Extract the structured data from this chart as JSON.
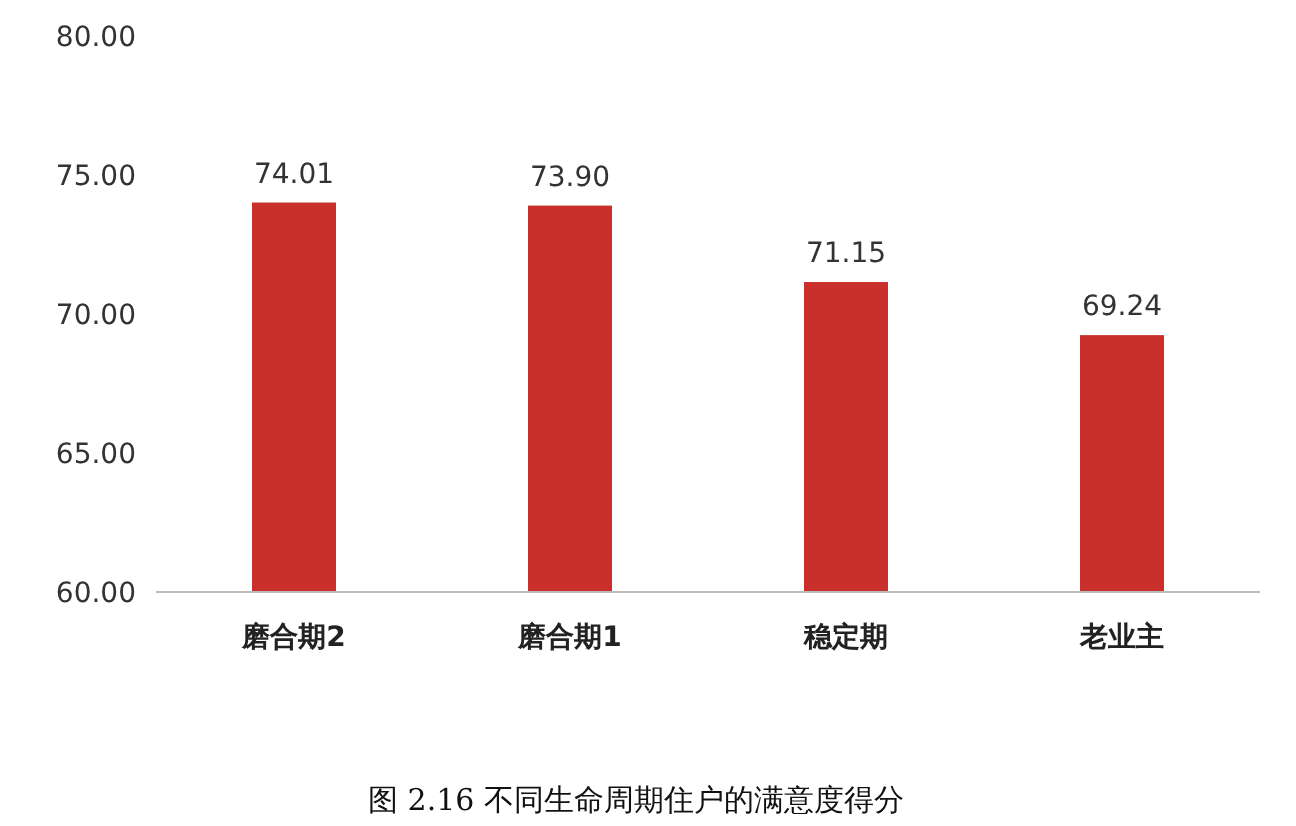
{
  "chart_data": {
    "type": "bar",
    "title": "图 2.16  不同生命周期住户的满意度得分",
    "categories": [
      "磨合期2",
      "磨合期1",
      "稳定期",
      "老业主"
    ],
    "values": [
      74.01,
      73.9,
      71.15,
      69.24
    ],
    "value_labels": [
      "74.01",
      "73.90",
      "71.15",
      "69.24"
    ],
    "color": "#c9302c",
    "ylim": [
      60,
      80
    ],
    "yticks": [
      {
        "value": 60,
        "label": "60.00"
      },
      {
        "value": 65,
        "label": "65.00"
      },
      {
        "value": 70,
        "label": "70.00"
      },
      {
        "value": 75,
        "label": "75.00"
      },
      {
        "value": 80,
        "label": "80.00"
      }
    ],
    "grid": false
  }
}
